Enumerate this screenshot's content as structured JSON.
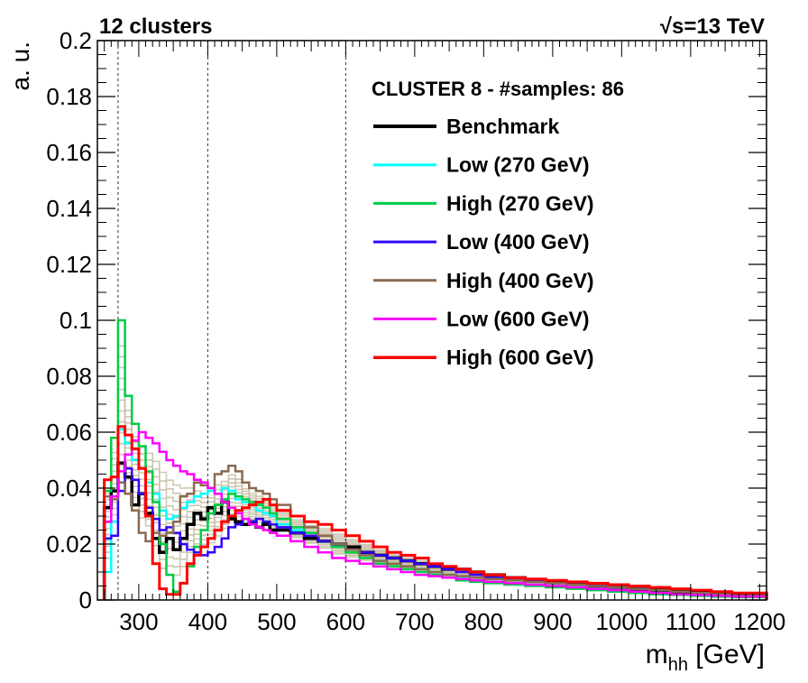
{
  "header": {
    "left_label": "12 clusters",
    "energy_symbol": "√s",
    "energy_value": "=13 TeV"
  },
  "chart_data": {
    "type": "line",
    "title": "12 clusters",
    "xlabel_main": "m",
    "xlabel_sub": "hh",
    "xlabel_unit": " [GeV]",
    "ylabel": "a. u.",
    "xlim": [
      240,
      1210
    ],
    "ylim": [
      0,
      0.2
    ],
    "xticks": [
      300,
      400,
      500,
      600,
      700,
      800,
      900,
      1000,
      1100,
      1200
    ],
    "yticks": [
      0,
      0.02,
      0.04,
      0.06,
      0.08,
      0.1,
      0.12,
      0.14,
      0.16,
      0.18,
      0.2
    ],
    "ytick_labels": [
      "0",
      "0.02",
      "0.04",
      "0.06",
      "0.08",
      "0.1",
      "0.12",
      "0.14",
      "0.16",
      "0.18",
      "0.2"
    ],
    "reference_lines_x": [
      270,
      400,
      600
    ],
    "legend_title": "CLUSTER 8 - #samples: 86",
    "legend_position": "top-right",
    "bin_edges": [
      250,
      260,
      270,
      280,
      290,
      300,
      310,
      320,
      330,
      340,
      350,
      360,
      370,
      380,
      390,
      400,
      410,
      420,
      430,
      440,
      450,
      460,
      470,
      480,
      490,
      500,
      520,
      540,
      560,
      580,
      600,
      620,
      640,
      660,
      680,
      700,
      720,
      740,
      760,
      780,
      800,
      830,
      860,
      890,
      920,
      950,
      980,
      1010,
      1040,
      1070,
      1100,
      1130,
      1160,
      1210
    ],
    "series": [
      {
        "name": "Benchmark",
        "color": "#000000",
        "width": 3.5,
        "values": [
          0.033,
          0.039,
          0.049,
          0.044,
          0.034,
          0.038,
          0.031,
          0.022,
          0.017,
          0.022,
          0.018,
          0.022,
          0.027,
          0.031,
          0.029,
          0.033,
          0.031,
          0.035,
          0.029,
          0.028,
          0.027,
          0.028,
          0.026,
          0.027,
          0.025,
          0.025,
          0.024,
          0.022,
          0.021,
          0.02,
          0.019,
          0.017,
          0.016,
          0.015,
          0.014,
          0.013,
          0.012,
          0.011,
          0.011,
          0.01,
          0.009,
          0.008,
          0.007,
          0.0065,
          0.006,
          0.005,
          0.0045,
          0.004,
          0.0035,
          0.003,
          0.0025,
          0.002,
          0.0018
        ]
      },
      {
        "name": "Low (270 GeV)",
        "color": "#00ffff",
        "width": 2.5,
        "values": [
          0.01,
          0.028,
          0.061,
          0.056,
          0.05,
          0.047,
          0.042,
          0.038,
          0.032,
          0.029,
          0.03,
          0.033,
          0.035,
          0.037,
          0.038,
          0.039,
          0.038,
          0.04,
          0.039,
          0.036,
          0.035,
          0.034,
          0.032,
          0.031,
          0.03,
          0.027,
          0.025,
          0.023,
          0.021,
          0.019,
          0.018,
          0.016,
          0.014,
          0.013,
          0.012,
          0.011,
          0.01,
          0.009,
          0.008,
          0.007,
          0.0065,
          0.006,
          0.0055,
          0.005,
          0.0045,
          0.004,
          0.0035,
          0.003,
          0.0025,
          0.002,
          0.0018,
          0.0015,
          0.0012
        ]
      },
      {
        "name": "High (270 GeV)",
        "color": "#00cc44",
        "width": 2.5,
        "values": [
          0.039,
          0.058,
          0.1,
          0.073,
          0.063,
          0.055,
          0.046,
          0.035,
          0.02,
          0.009,
          0.003,
          0.006,
          0.012,
          0.019,
          0.025,
          0.031,
          0.034,
          0.036,
          0.038,
          0.037,
          0.036,
          0.035,
          0.034,
          0.033,
          0.031,
          0.029,
          0.026,
          0.024,
          0.021,
          0.019,
          0.017,
          0.015,
          0.013,
          0.012,
          0.011,
          0.01,
          0.009,
          0.008,
          0.007,
          0.0065,
          0.006,
          0.0055,
          0.005,
          0.0045,
          0.004,
          0.0035,
          0.003,
          0.0025,
          0.002,
          0.0018,
          0.0015,
          0.0012,
          0.001
        ]
      },
      {
        "name": "Low (400 GeV)",
        "color": "#3300ff",
        "width": 2.5,
        "values": [
          0.022,
          0.023,
          0.039,
          0.047,
          0.043,
          0.038,
          0.033,
          0.029,
          0.025,
          0.026,
          0.024,
          0.02,
          0.018,
          0.017,
          0.016,
          0.017,
          0.019,
          0.022,
          0.026,
          0.027,
          0.029,
          0.028,
          0.029,
          0.028,
          0.027,
          0.026,
          0.024,
          0.023,
          0.021,
          0.02,
          0.018,
          0.017,
          0.016,
          0.015,
          0.014,
          0.013,
          0.012,
          0.011,
          0.01,
          0.009,
          0.008,
          0.0075,
          0.007,
          0.006,
          0.0055,
          0.005,
          0.0045,
          0.004,
          0.0035,
          0.003,
          0.0025,
          0.002,
          0.0015
        ]
      },
      {
        "name": "High (400 GeV)",
        "color": "#8a6a4f",
        "width": 2.5,
        "values": [
          0.037,
          0.036,
          0.042,
          0.038,
          0.032,
          0.024,
          0.021,
          0.024,
          0.023,
          0.024,
          0.028,
          0.037,
          0.038,
          0.042,
          0.041,
          0.04,
          0.045,
          0.046,
          0.048,
          0.046,
          0.042,
          0.04,
          0.039,
          0.038,
          0.036,
          0.034,
          0.03,
          0.026,
          0.023,
          0.02,
          0.018,
          0.016,
          0.014,
          0.013,
          0.012,
          0.011,
          0.01,
          0.009,
          0.0085,
          0.008,
          0.0075,
          0.007,
          0.0065,
          0.006,
          0.0055,
          0.005,
          0.0045,
          0.004,
          0.0035,
          0.003,
          0.0025,
          0.002,
          0.0015
        ]
      },
      {
        "name": "Low (600 GeV)",
        "color": "#ff00ff",
        "width": 2.5,
        "values": [
          0.028,
          0.037,
          0.046,
          0.052,
          0.057,
          0.06,
          0.058,
          0.056,
          0.053,
          0.05,
          0.048,
          0.046,
          0.045,
          0.043,
          0.042,
          0.04,
          0.038,
          0.035,
          0.033,
          0.031,
          0.029,
          0.027,
          0.026,
          0.025,
          0.024,
          0.023,
          0.021,
          0.019,
          0.017,
          0.015,
          0.014,
          0.013,
          0.012,
          0.011,
          0.01,
          0.009,
          0.0085,
          0.008,
          0.0075,
          0.007,
          0.0065,
          0.006,
          0.0055,
          0.005,
          0.0045,
          0.004,
          0.0035,
          0.003,
          0.0025,
          0.002,
          0.0018,
          0.0015,
          0.0012
        ]
      },
      {
        "name": "High (600 GeV)",
        "color": "#ff0000",
        "width": 3,
        "values": [
          0.043,
          0.044,
          0.062,
          0.059,
          0.054,
          0.047,
          0.03,
          0.013,
          0.004,
          0.002,
          0.002,
          0.006,
          0.013,
          0.016,
          0.019,
          0.022,
          0.025,
          0.028,
          0.03,
          0.032,
          0.033,
          0.034,
          0.035,
          0.036,
          0.034,
          0.032,
          0.03,
          0.028,
          0.027,
          0.025,
          0.023,
          0.021,
          0.019,
          0.017,
          0.016,
          0.015,
          0.013,
          0.012,
          0.011,
          0.01,
          0.009,
          0.008,
          0.0075,
          0.007,
          0.0065,
          0.006,
          0.0055,
          0.005,
          0.0045,
          0.004,
          0.0035,
          0.003,
          0.0025
        ]
      }
    ]
  }
}
